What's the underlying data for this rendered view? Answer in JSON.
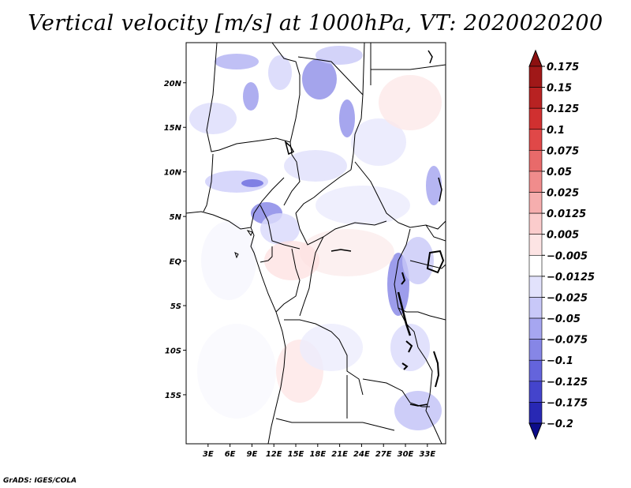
{
  "title": "Vertical velocity [m/s] at 1000hPa, VT: 2020020200",
  "credit": "GrADS: IGES/COLA",
  "map": {
    "lon_range": [
      0,
      35.5
    ],
    "lat_range": [
      -20.5,
      24.5
    ],
    "lat_ticks": [
      {
        "value": 20,
        "label": "20N"
      },
      {
        "value": 15,
        "label": "15N"
      },
      {
        "value": 10,
        "label": "10N"
      },
      {
        "value": 5,
        "label": "5N"
      },
      {
        "value": 0,
        "label": "EQ"
      },
      {
        "value": -5,
        "label": "5S"
      },
      {
        "value": -10,
        "label": "10S"
      },
      {
        "value": -15,
        "label": "15S"
      }
    ],
    "lon_ticks": [
      {
        "value": 3,
        "label": "3E"
      },
      {
        "value": 6,
        "label": "6E"
      },
      {
        "value": 9,
        "label": "9E"
      },
      {
        "value": 12,
        "label": "12E"
      },
      {
        "value": 15,
        "label": "15E"
      },
      {
        "value": 18,
        "label": "18E"
      },
      {
        "value": 21,
        "label": "21E"
      },
      {
        "value": 24,
        "label": "24E"
      },
      {
        "value": 27,
        "label": "27E"
      },
      {
        "value": 30,
        "label": "30E"
      },
      {
        "value": 33,
        "label": "33E"
      }
    ]
  },
  "colorbar": {
    "levels": [
      {
        "label": "0.175",
        "color": "#a01818"
      },
      {
        "label": "0.15",
        "color": "#b82222"
      },
      {
        "label": "0.125",
        "color": "#d03030"
      },
      {
        "label": "0.1",
        "color": "#e04848"
      },
      {
        "label": "0.075",
        "color": "#e86a6a"
      },
      {
        "label": "0.05",
        "color": "#f08c8c"
      },
      {
        "label": "0.025",
        "color": "#f6aeae"
      },
      {
        "label": "0.0125",
        "color": "#fbcccc"
      },
      {
        "label": "0.005",
        "color": "#fde4e4"
      },
      {
        "label": "−0.005",
        "color": "#ffffff"
      },
      {
        "label": "−0.0125",
        "color": "#e2e2fc"
      },
      {
        "label": "−0.025",
        "color": "#c8c8f8"
      },
      {
        "label": "−0.05",
        "color": "#a6a6f0"
      },
      {
        "label": "−0.075",
        "color": "#8686e6"
      },
      {
        "label": "−0.1",
        "color": "#6464dc"
      },
      {
        "label": "−0.125",
        "color": "#4444cc"
      },
      {
        "label": "−0.175",
        "color": "#2828b4"
      },
      {
        "label": "−0.2",
        "color": "#14149c"
      }
    ],
    "top_cap_color": "#8c1010",
    "bottom_cap_color": "#0c0c8a"
  }
}
